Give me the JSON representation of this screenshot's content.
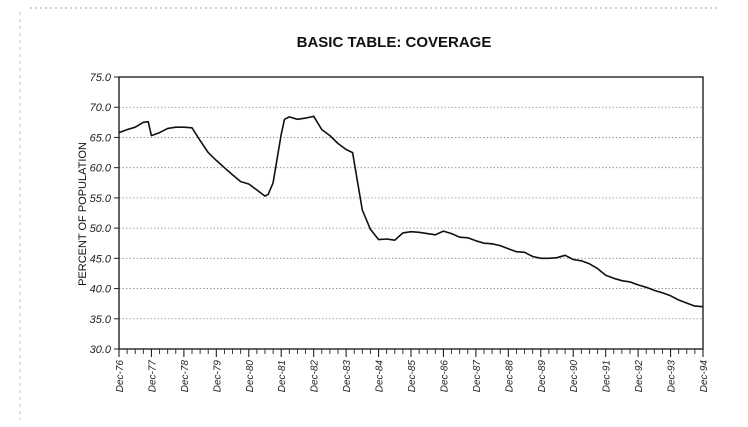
{
  "chart_data": {
    "type": "line",
    "title": "BASIC TABLE: COVERAGE",
    "xlabel": "",
    "ylabel": "PERCENT OF POPULATION",
    "ylim": [
      30.0,
      75.0
    ],
    "yticks": [
      "30.0",
      "35.0",
      "40.0",
      "45.0",
      "50.0",
      "55.0",
      "60.0",
      "65.0",
      "70.0",
      "75.0"
    ],
    "xticks": [
      "Dec-76",
      "Dec-77",
      "Dec-78",
      "Dec-79",
      "Dec-80",
      "Dec-81",
      "Dec-82",
      "Dec-83",
      "Dec-84",
      "Dec-85",
      "Dec-86",
      "Dec-87",
      "Dec-88",
      "Dec-89",
      "Dec-90",
      "Dec-91",
      "Dec-92",
      "Dec-93",
      "Dec-94"
    ],
    "grid": true,
    "series": [
      {
        "x": [
          0,
          0.25,
          0.5,
          0.75,
          0.9,
          1.0,
          1.25,
          1.5,
          1.75,
          2.0,
          2.25,
          2.5,
          2.75,
          3.0,
          3.25,
          3.5,
          3.75,
          4.0,
          4.25,
          4.5,
          4.6,
          4.75,
          5.0,
          5.1,
          5.25,
          5.5,
          5.75,
          6.0,
          6.25,
          6.5,
          6.75,
          7.0,
          7.2,
          7.5,
          7.75,
          8.0,
          8.25,
          8.5,
          8.75,
          9.0,
          9.25,
          9.5,
          9.75,
          10.0,
          10.25,
          10.5,
          10.75,
          11.0,
          11.25,
          11.5,
          11.75,
          12.0,
          12.25,
          12.5,
          12.75,
          13.0,
          13.25,
          13.5,
          13.75,
          14.0,
          14.25,
          14.5,
          14.75,
          15.0,
          15.25,
          15.5,
          15.75,
          16.0,
          16.25,
          16.5,
          16.75,
          17.0,
          17.25,
          17.5,
          17.75,
          18.0
        ],
        "y": [
          65.8,
          66.3,
          66.7,
          67.5,
          67.6,
          65.3,
          65.8,
          66.5,
          66.7,
          66.7,
          66.6,
          64.5,
          62.5,
          61.2,
          60.0,
          58.8,
          57.7,
          57.3,
          56.3,
          55.3,
          55.6,
          57.5,
          65.5,
          68.0,
          68.4,
          68.0,
          68.2,
          68.5,
          66.3,
          65.3,
          64.0,
          63.0,
          62.5,
          53.0,
          49.8,
          48.1,
          48.2,
          48.0,
          49.2,
          49.4,
          49.3,
          49.1,
          48.9,
          49.5,
          49.1,
          48.5,
          48.4,
          47.9,
          47.5,
          47.4,
          47.1,
          46.6,
          46.1,
          46.0,
          45.3,
          45.0,
          45.0,
          45.1,
          45.5,
          44.8,
          44.6,
          44.1,
          43.3,
          42.2,
          41.7,
          41.3,
          41.1,
          40.6,
          40.2,
          39.7,
          39.3,
          38.8,
          38.1,
          37.6,
          37.1,
          37.0
        ]
      }
    ]
  }
}
